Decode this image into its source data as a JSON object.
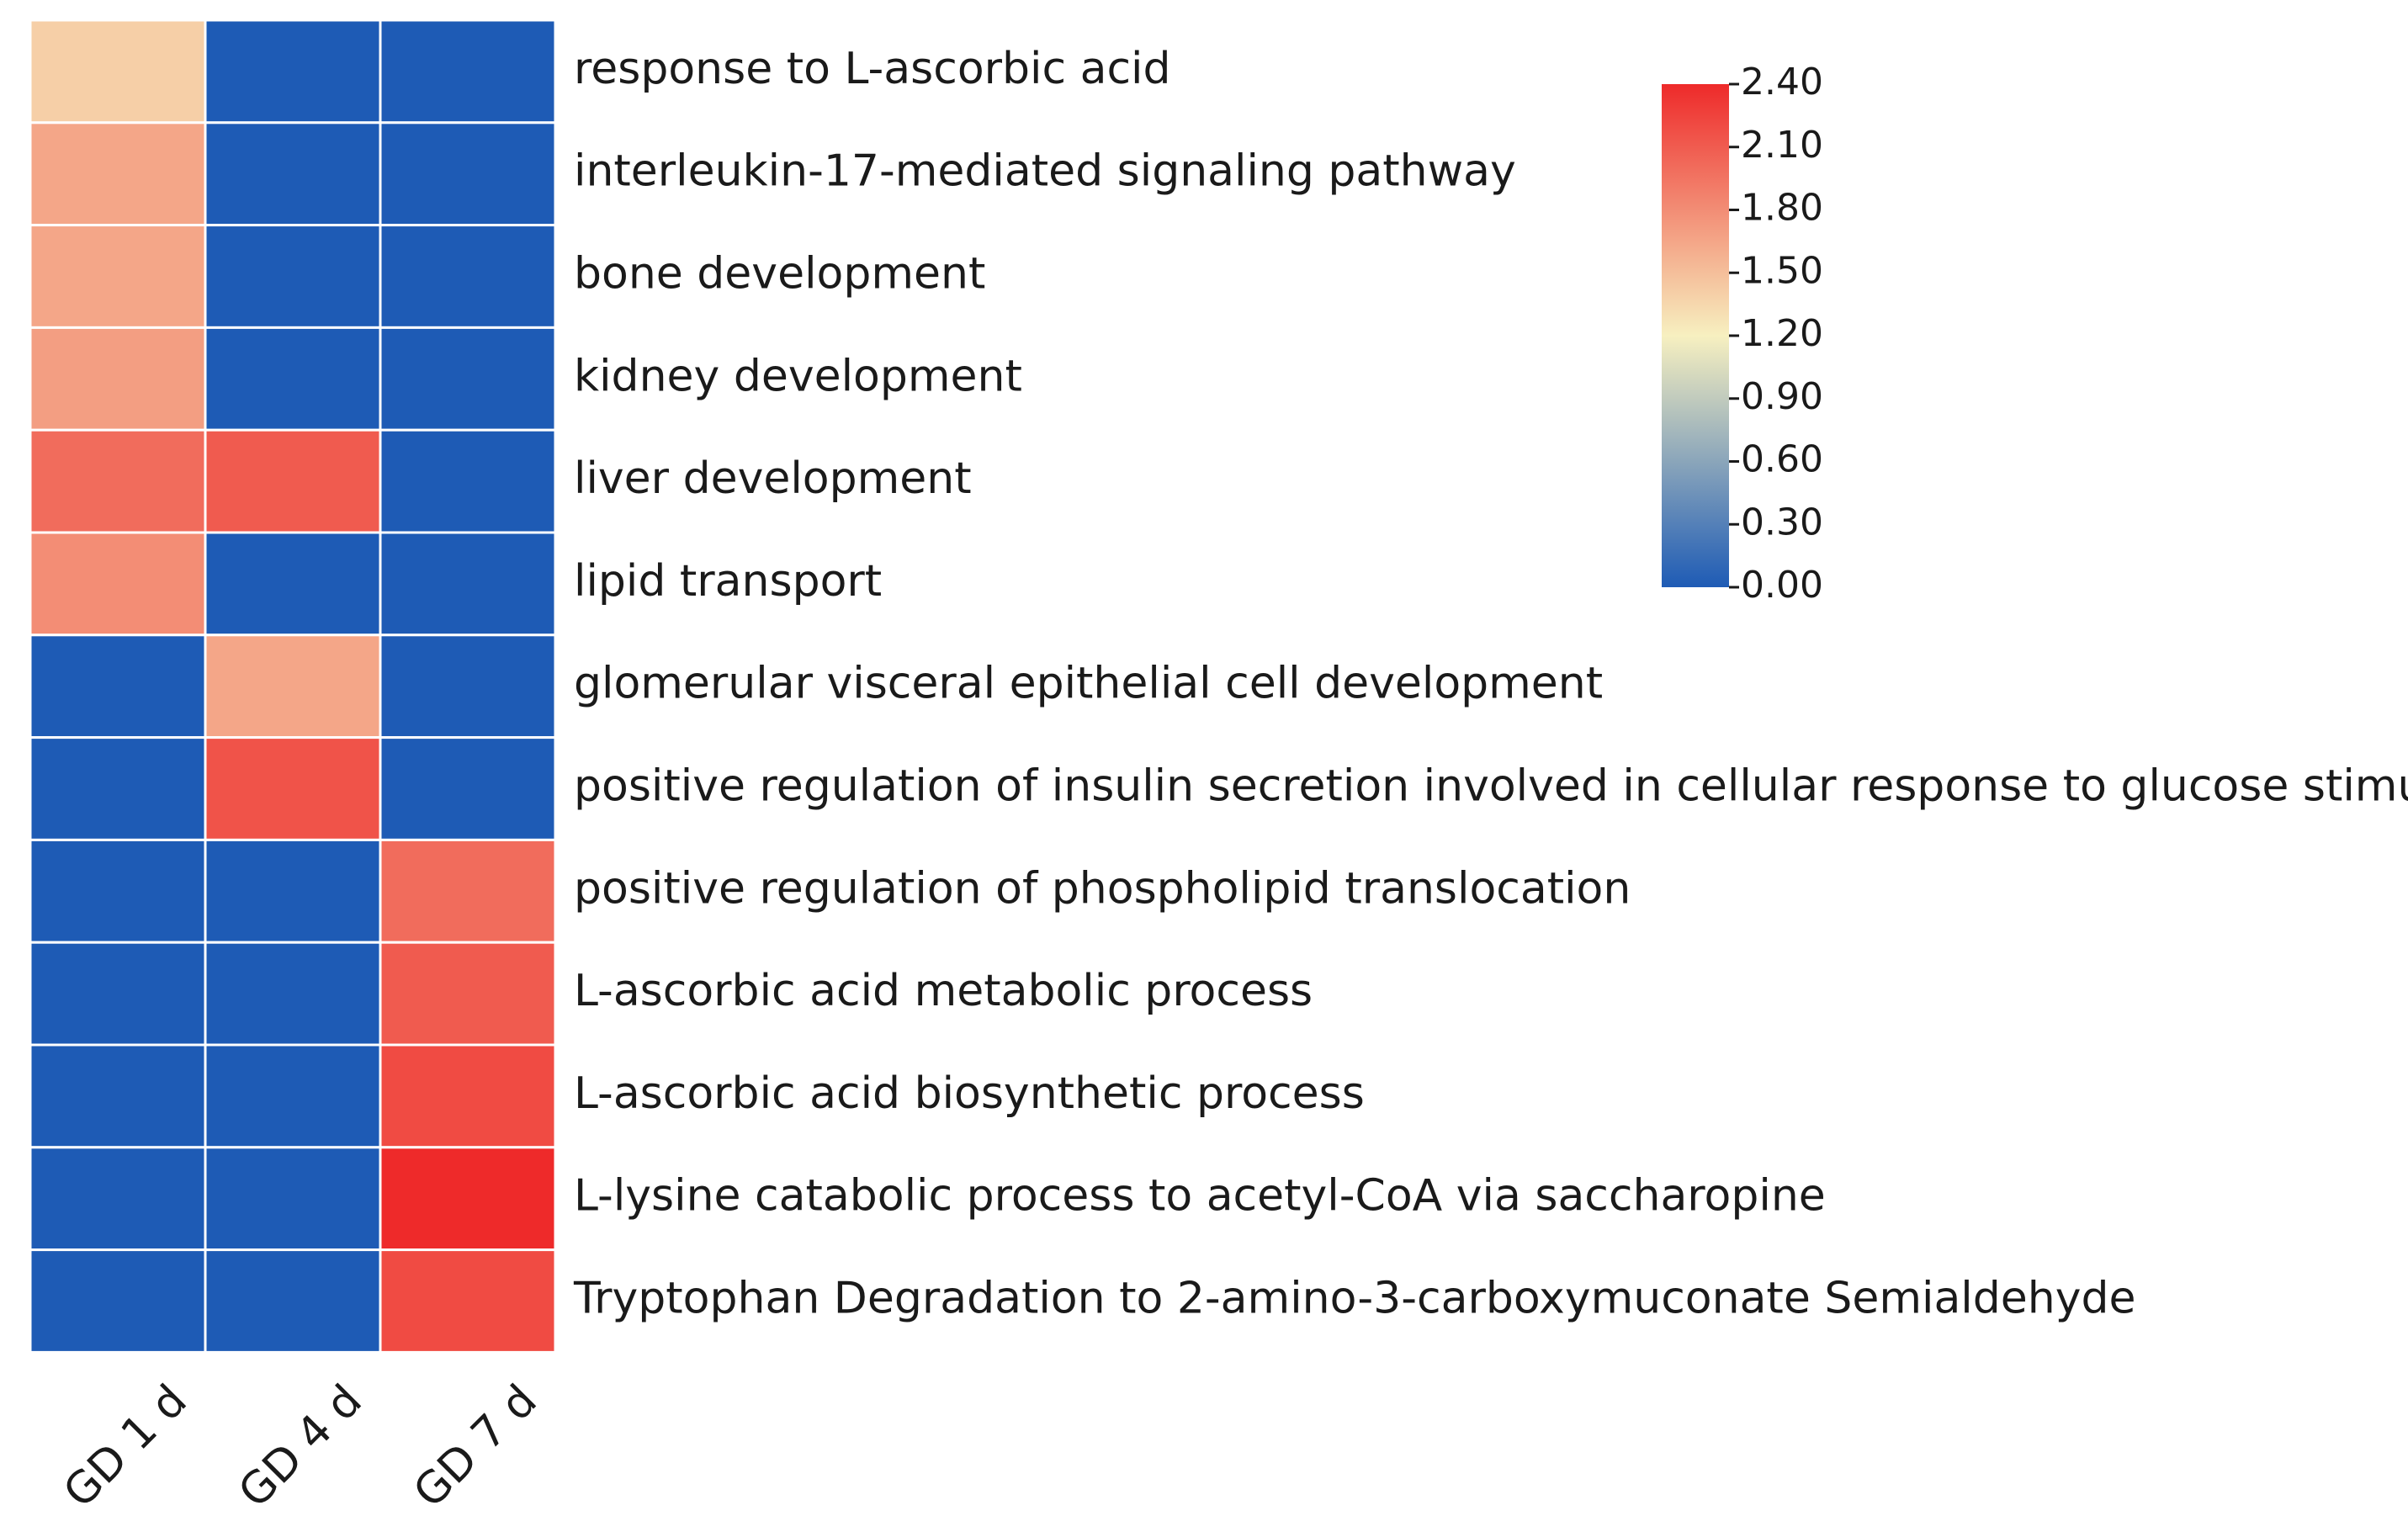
{
  "chart_data": {
    "type": "heatmap",
    "title": "",
    "columns": [
      "GD 1 d",
      "GD 4 d",
      "GD 7 d"
    ],
    "rows": [
      "response to L-ascorbic acid",
      "interleukin-17-mediated signaling pathway",
      "bone development",
      "kidney development",
      "liver development",
      "lipid transport",
      "glomerular visceral epithelial cell development",
      "positive regulation of insulin secretion involved in cellular response to glucose stimulus",
      "positive regulation of phospholipid translocation",
      "L-ascorbic acid metabolic process",
      "L-ascorbic acid biosynthetic process",
      "L-lysine catabolic process to acetyl-CoA via saccharopine",
      "Tryptophan Degradation to 2-amino-3-carboxymuconate Semialdehyde"
    ],
    "values": [
      [
        1.4,
        0.0,
        0.0
      ],
      [
        1.65,
        0.0,
        0.0
      ],
      [
        1.65,
        0.0,
        0.0
      ],
      [
        1.7,
        0.0,
        0.0
      ],
      [
        2.0,
        2.1,
        0.0
      ],
      [
        1.8,
        0.0,
        0.0
      ],
      [
        0.0,
        1.65,
        0.0
      ],
      [
        0.0,
        2.15,
        0.0
      ],
      [
        0.0,
        0.0,
        2.0
      ],
      [
        0.0,
        0.0,
        2.1
      ],
      [
        0.0,
        0.0,
        2.2
      ],
      [
        0.0,
        0.0,
        2.4
      ],
      [
        0.0,
        0.0,
        2.2
      ]
    ],
    "colorbar": {
      "min": 0.0,
      "max": 2.4,
      "ticks": [
        "2.40",
        "2.10",
        "1.80",
        "1.50",
        "1.20",
        "0.90",
        "0.60",
        "0.30",
        "0.00"
      ],
      "colors": [
        "#1e5bb5",
        "#f7f0c0",
        "#ee2a2a"
      ]
    }
  }
}
